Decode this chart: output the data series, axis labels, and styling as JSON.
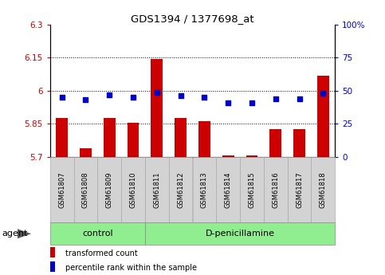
{
  "title": "GDS1394 / 1377698_at",
  "samples": [
    "GSM61807",
    "GSM61808",
    "GSM61809",
    "GSM61810",
    "GSM61811",
    "GSM61812",
    "GSM61813",
    "GSM61814",
    "GSM61815",
    "GSM61816",
    "GSM61817",
    "GSM61818"
  ],
  "transformed_count": [
    5.875,
    5.74,
    5.875,
    5.855,
    6.145,
    5.875,
    5.86,
    5.705,
    5.705,
    5.825,
    5.825,
    6.07
  ],
  "percentile_rank": [
    45,
    43,
    47,
    45,
    49,
    46,
    45,
    41,
    41,
    44,
    44,
    48
  ],
  "bar_color": "#cc0000",
  "dot_color": "#0000cc",
  "ylim_left": [
    5.7,
    6.3
  ],
  "ylim_right": [
    0,
    100
  ],
  "yticks_left": [
    5.7,
    5.85,
    6.0,
    6.15,
    6.3
  ],
  "ytick_labels_left": [
    "5.7",
    "5.85",
    "6",
    "6.15",
    "6.3"
  ],
  "yticks_right": [
    0,
    25,
    50,
    75,
    100
  ],
  "ytick_labels_right": [
    "0",
    "25",
    "50",
    "75",
    "100%"
  ],
  "hlines": [
    5.85,
    6.0,
    6.15
  ],
  "control_samples": 4,
  "control_label": "control",
  "treatment_label": "D-penicillamine",
  "agent_label": "agent",
  "legend_bar_label": "transformed count",
  "legend_dot_label": "percentile rank within the sample",
  "background_color": "#ffffff",
  "bar_width": 0.5,
  "figsize": [
    4.83,
    3.45
  ],
  "dpi": 100
}
